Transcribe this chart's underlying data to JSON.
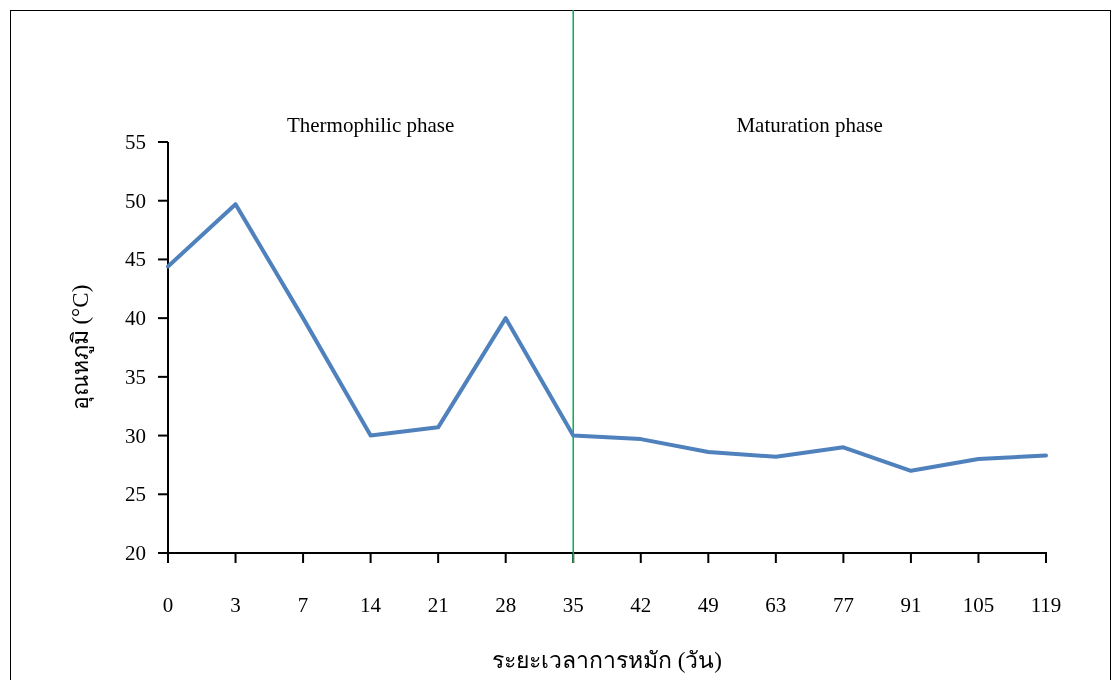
{
  "chart_data": {
    "type": "line",
    "xlabel": "ระยะเวลาการหมัก (วัน)",
    "ylabel": "อุณหภูมิ (°C)",
    "categories": [
      "0",
      "3",
      "7",
      "14",
      "21",
      "28",
      "35",
      "42",
      "49",
      "63",
      "77",
      "91",
      "105",
      "119"
    ],
    "series": [
      {
        "color": "#4f81bd",
        "values": [
          44.4,
          49.7,
          40,
          30,
          30.7,
          40,
          30,
          29.7,
          28.6,
          28.2,
          29,
          27,
          28,
          28.3
        ]
      }
    ],
    "ylim": [
      20,
      55
    ],
    "yticks": [
      20,
      25,
      30,
      35,
      40,
      45,
      50,
      55
    ],
    "grid": false,
    "marker": "none",
    "line_style": "solid",
    "ref_lines": [
      {
        "axis": "x",
        "value": "35",
        "color": "#00b050"
      }
    ],
    "annotations": [
      "Thermophilic phase",
      "Maturation phase"
    ]
  }
}
